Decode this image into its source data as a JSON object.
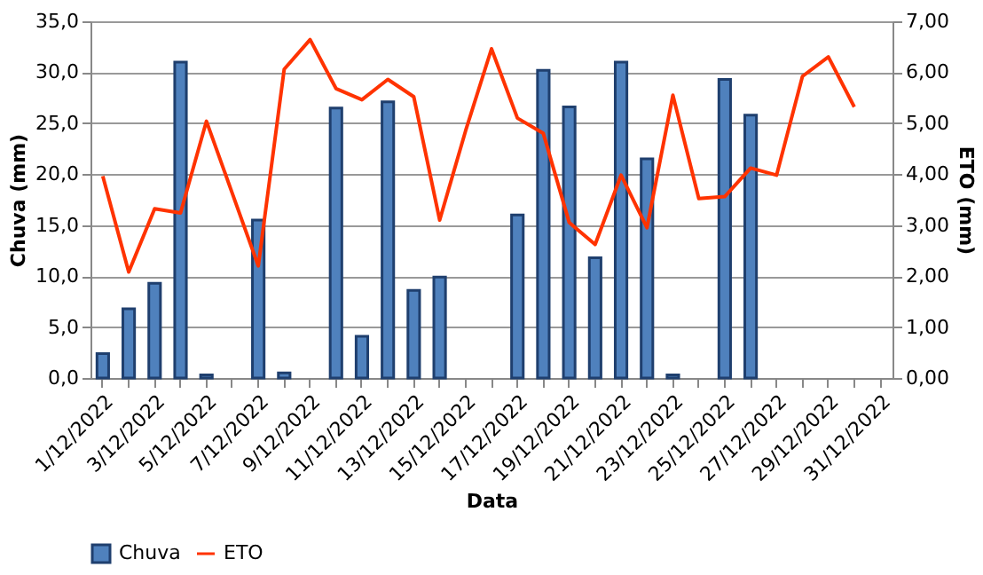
{
  "chart_data": {
    "type": "bar",
    "xlabel": "Data",
    "ylabel": "Chuva (mm)",
    "y2label": "ETO (mm)",
    "categories": [
      "1/12/2022",
      null,
      "3/12/2022",
      null,
      "5/12/2022",
      null,
      "7/12/2022",
      null,
      "9/12/2022",
      null,
      "11/12/2022",
      null,
      "13/12/2022",
      null,
      "15/12/2022",
      null,
      "17/12/2022",
      null,
      "19/12/2022",
      null,
      "21/12/2022",
      null,
      "23/12/2022",
      null,
      "25/12/2022",
      null,
      "27/12/2022",
      null,
      "29/12/2022",
      null,
      "31/12/2022"
    ],
    "series": [
      {
        "name": "Chuva",
        "color": "#4f81bd",
        "values": [
          2.4,
          6.8,
          9.3,
          31.0,
          0.3,
          null,
          15.5,
          0.5,
          null,
          26.5,
          4.1,
          27.1,
          8.6,
          9.9,
          null,
          null,
          16.0,
          30.2,
          26.6,
          11.8,
          31.0,
          21.5,
          0.3,
          null,
          29.3,
          25.8,
          null,
          null,
          null,
          null,
          null
        ]
      },
      {
        "name": "ETO",
        "type": "line",
        "axis": "y2",
        "color": "#ff3300",
        "values": [
          3.96,
          2.08,
          3.32,
          3.24,
          5.04,
          3.62,
          2.2,
          6.06,
          6.64,
          5.68,
          5.46,
          5.86,
          5.52,
          3.1,
          4.85,
          6.46,
          5.1,
          4.8,
          3.05,
          2.62,
          3.98,
          2.95,
          5.55,
          3.52,
          3.56,
          4.12,
          3.98,
          5.92,
          6.3,
          5.32,
          null
        ]
      }
    ],
    "ylim": [
      0,
      35
    ],
    "yticks": [
      {
        "value": 0,
        "label": "0,0"
      },
      {
        "value": 5,
        "label": "5,0"
      },
      {
        "value": 10,
        "label": "10,0"
      },
      {
        "value": 15,
        "label": "15,0"
      },
      {
        "value": 20,
        "label": "20,0"
      },
      {
        "value": 25,
        "label": "25,0"
      },
      {
        "value": 30,
        "label": "30,0"
      },
      {
        "value": 35,
        "label": "35,0"
      }
    ],
    "y2lim": [
      0,
      7
    ],
    "y2ticks": [
      {
        "value": 0,
        "label": "0,00"
      },
      {
        "value": 1,
        "label": "1,00"
      },
      {
        "value": 2,
        "label": "2,00"
      },
      {
        "value": 3,
        "label": "3,00"
      },
      {
        "value": 4,
        "label": "4,00"
      },
      {
        "value": 5,
        "label": "5,00"
      },
      {
        "value": 6,
        "label": "6,00"
      },
      {
        "value": 7,
        "label": "7,00"
      }
    ],
    "grid": "y",
    "legend": "bottom"
  }
}
